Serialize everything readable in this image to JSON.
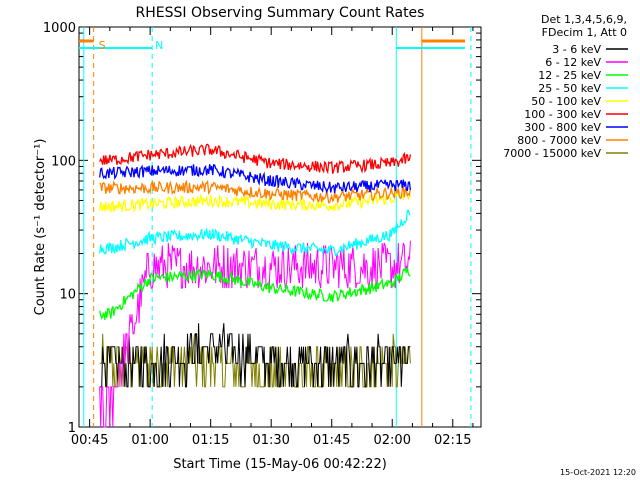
{
  "chart_data": {
    "type": "line",
    "title": "RHESSI Observing Summary Count Rates",
    "xlabel": "Start Time (15-May-06 00:42:22)",
    "ylabel": "Count Rate (s⁻¹ detector⁻¹)",
    "y_scale": "log",
    "ylim": [
      1,
      1000
    ],
    "xlim": [
      "00:42:22",
      "02:22:00"
    ],
    "x_ticks": [
      "00:45",
      "01:00",
      "01:15",
      "01:30",
      "01:45",
      "02:00",
      "02:15"
    ],
    "y_ticks": [
      "1",
      "10",
      "100",
      "1000"
    ],
    "legend": {
      "placement": "top-right",
      "header": [
        "Det 1,3,4,5,6,9,",
        "FDecim 1, Att 0"
      ]
    },
    "x": [
      "00:50",
      "01:00",
      "01:15",
      "01:30",
      "01:45",
      "02:00",
      "02:04"
    ],
    "series": [
      {
        "name": "3 - 6 keV",
        "color": "#000000",
        "values": [
          3,
          3,
          4,
          3,
          3,
          3,
          3
        ]
      },
      {
        "name": "6 - 12 keV",
        "color": "#ff00ff",
        "values": [
          1.5,
          16,
          16,
          16,
          16,
          16,
          17
        ]
      },
      {
        "name": "12 - 25 keV",
        "color": "#00ff00",
        "values": [
          7,
          13,
          14,
          11,
          9.5,
          12,
          15
        ]
      },
      {
        "name": "25 - 50 keV",
        "color": "#00ffff",
        "values": [
          22,
          26,
          28,
          23,
          21,
          28,
          40
        ]
      },
      {
        "name": "50 - 100 keV",
        "color": "#ffff00",
        "values": [
          45,
          47,
          50,
          47,
          46,
          52,
          56
        ]
      },
      {
        "name": "100 - 300 keV",
        "color": "#ff0000",
        "values": [
          100,
          110,
          120,
          95,
          88,
          95,
          103
        ]
      },
      {
        "name": "300 - 800 keV",
        "color": "#0000ff",
        "values": [
          80,
          83,
          85,
          70,
          62,
          65,
          65
        ]
      },
      {
        "name": "800 - 7000 keV",
        "color": "#ff8000",
        "values": [
          62,
          62,
          63,
          56,
          53,
          57,
          58
        ]
      },
      {
        "name": "7000 - 15000 keV",
        "color": "#808000",
        "values": [
          3,
          3,
          3,
          2.5,
          2.5,
          3,
          3
        ]
      }
    ],
    "annotations": [
      {
        "label": "S",
        "color": "#ff8000",
        "time": "00:46"
      },
      {
        "label": "N",
        "color": "#00ffff",
        "time": "01:00"
      }
    ],
    "footer_timestamp": "15-Oct-2021 12:20"
  }
}
